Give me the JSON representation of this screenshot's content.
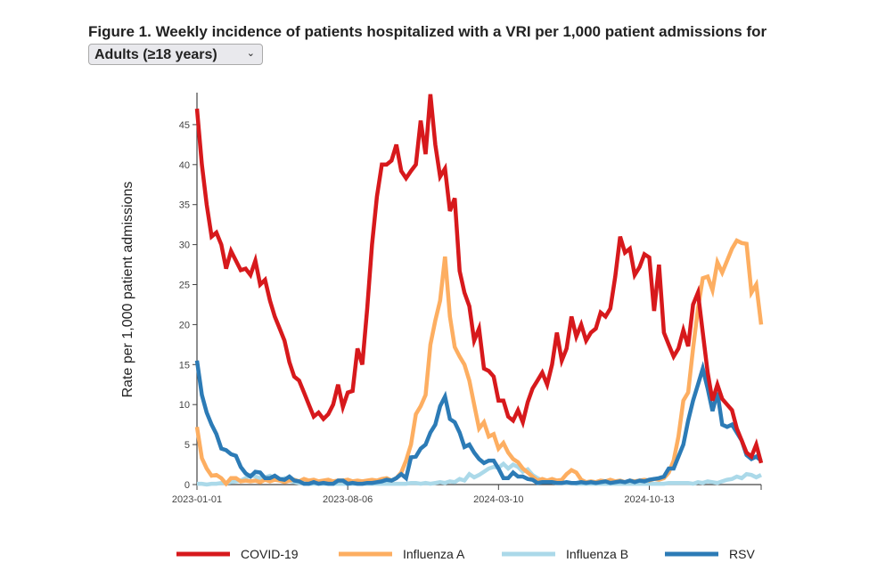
{
  "header": {
    "title": "Figure 1. Weekly incidence of patients hospitalized with a VRI per 1,000 patient admissions for",
    "population_select": "Adults (≥18 years)",
    "chevron": "⌄"
  },
  "chart_data": {
    "type": "line",
    "title": "Figure 1. Weekly incidence of patients hospitalized with a VRI per 1,000 patient admissions for Adults (≥18 years)",
    "xlabel": "",
    "ylabel": "Rate per 1,000 patient admissions",
    "x_start": "2023-01-01",
    "x_interval": "weekly",
    "x_ticks": [
      {
        "week": 0,
        "label": "2023-01-01"
      },
      {
        "week": 31,
        "label": "2023-08-06"
      },
      {
        "week": 62,
        "label": "2024-03-10"
      },
      {
        "week": 93,
        "label": "2024-10-13"
      }
    ],
    "y_ticks": [
      0,
      5,
      10,
      15,
      20,
      25,
      30,
      35,
      40,
      45
    ],
    "ylim": [
      0,
      49
    ],
    "grid": false,
    "legend": "bottom",
    "series": [
      {
        "name": "COVID-19",
        "color": "#d7191c",
        "values": [
          47,
          40,
          35,
          31,
          31.5,
          30,
          27,
          29.2,
          28,
          26.8,
          27,
          26.2,
          28,
          25,
          25.6,
          23,
          21,
          19.5,
          18,
          15.3,
          13.5,
          13,
          11.5,
          10,
          8.5,
          9,
          8.2,
          8.8,
          10,
          12.5,
          9.7,
          11.5,
          11.7,
          17,
          15,
          22,
          30,
          36,
          40,
          40,
          40.5,
          42.5,
          39.2,
          38.3,
          39.2,
          40,
          45.5,
          41.3,
          48.8,
          42.5,
          38.5,
          39.5,
          34.2,
          35.8,
          26.7,
          24,
          22.3,
          18,
          19.5,
          14.5,
          14.2,
          13.5,
          10.5,
          10.5,
          8.5,
          8,
          9.3,
          7.8,
          10.3,
          12,
          13,
          14,
          12.5,
          15,
          19,
          15.5,
          17,
          21,
          18.5,
          20,
          18,
          19,
          19.5,
          21.5,
          21,
          22,
          26,
          31,
          29,
          29.5,
          26.2,
          27.2,
          28.8,
          28.4,
          21.7,
          27.5,
          19,
          17.5,
          16,
          17,
          19.3,
          17.3,
          22.5,
          24,
          19,
          14,
          10.5,
          12.5,
          10.7,
          10,
          9.3,
          7,
          5.5,
          4,
          3.5,
          5,
          2.7
        ]
      },
      {
        "name": "Influenza A",
        "color": "#fdae61",
        "values": [
          7.2,
          3.3,
          2,
          1.1,
          1.2,
          0.8,
          0.1,
          0.8,
          0.8,
          0.4,
          0.5,
          0.4,
          0.5,
          0.3,
          0.6,
          0.4,
          0.6,
          0.5,
          0.3,
          0.5,
          0.6,
          0.4,
          0.7,
          0.5,
          0.6,
          0.4,
          0.5,
          0.6,
          0.4,
          0.5,
          0.5,
          0.6,
          0.4,
          0.5,
          0.4,
          0.5,
          0.6,
          0.5,
          0.7,
          0.8,
          0.5,
          0.8,
          1.5,
          3,
          5,
          8.8,
          9.8,
          11.2,
          17.5,
          20.5,
          23,
          28.5,
          21,
          17.2,
          16,
          15,
          13,
          10,
          7,
          7.8,
          6,
          6.3,
          4.5,
          5.2,
          4,
          3.2,
          2.8,
          2,
          1.5,
          1,
          0.5,
          0.7,
          0.5,
          0.7,
          0.5,
          0.6,
          1.3,
          1.8,
          1.5,
          0.6,
          0.3,
          0.4,
          0.3,
          0.5,
          0.4,
          0.6,
          0.4,
          0.5,
          0.3,
          0.5,
          0.4,
          0.5,
          0.6,
          0.5,
          0.7,
          0.6,
          0.8,
          1.5,
          3,
          6,
          10.5,
          11.5,
          17,
          22,
          25.8,
          26,
          24.3,
          27.8,
          26.5,
          28,
          29.5,
          30.5,
          30.2,
          30.1,
          24,
          25,
          20
        ]
      },
      {
        "name": "Influenza B",
        "color": "#abd9e9",
        "values": [
          0.1,
          0.1,
          0,
          0.1,
          0.1,
          0.2,
          0.2,
          0.3,
          0.4,
          0.5,
          0.8,
          1.2,
          1,
          0.8,
          0.9,
          1.1,
          0.7,
          0.6,
          0.8,
          0.5,
          0.3,
          0.2,
          0.2,
          0.1,
          0.1,
          0.1,
          0.1,
          0.1,
          0.1,
          0.1,
          0.1,
          0.1,
          0.1,
          0.1,
          0.1,
          0.1,
          0.1,
          0.1,
          0.1,
          0.1,
          0.1,
          0.1,
          0.1,
          0.1,
          0.2,
          0.2,
          0.1,
          0.2,
          0.1,
          0.2,
          0.3,
          0.2,
          0.4,
          0.3,
          0.7,
          0.5,
          1.3,
          0.9,
          1.2,
          1.6,
          2,
          2.2,
          2.1,
          2.6,
          2.0,
          2.5,
          2.2,
          1.6,
          1.9,
          1.2,
          0.8,
          0.5,
          0.3,
          0.3,
          0.2,
          0.2,
          0.2,
          0.2,
          0.1,
          0.1,
          0.1,
          0.1,
          0.1,
          0.1,
          0.1,
          0.1,
          0.1,
          0.1,
          0.1,
          0.1,
          0.1,
          0.1,
          0.1,
          0.1,
          0.1,
          0.1,
          0.1,
          0.2,
          0.2,
          0.2,
          0.2,
          0.2,
          0.1,
          0.3,
          0.2,
          0.4,
          0.3,
          0.2,
          0.4,
          0.6,
          0.7,
          1.0,
          0.8,
          1.3,
          1.2,
          0.9,
          1.2
        ]
      },
      {
        "name": "RSV",
        "color": "#2c7bb6",
        "values": [
          15.5,
          11.2,
          9,
          7.5,
          6.3,
          4.5,
          4.3,
          3.8,
          3.6,
          2.2,
          1.4,
          1,
          1.6,
          1.5,
          0.8,
          0.8,
          1.1,
          0.7,
          0.6,
          1,
          0.5,
          0.4,
          0.1,
          0.1,
          0.3,
          0.1,
          0.2,
          0.1,
          0.1,
          0.5,
          0.5,
          0.1,
          0.2,
          0.1,
          0.1,
          0.2,
          0.2,
          0.3,
          0.4,
          0.6,
          0.5,
          0.8,
          1.3,
          0.8,
          3.4,
          3.5,
          4.5,
          5,
          6.5,
          7.5,
          9.8,
          11,
          8.2,
          7.8,
          6.5,
          4.7,
          5,
          4,
          3.2,
          2.7,
          3,
          3,
          2,
          0.8,
          0.8,
          1.5,
          1,
          1,
          0.7,
          0.6,
          0.2,
          0.3,
          0.3,
          0.3,
          0.2,
          0.2,
          0.3,
          0.2,
          0.2,
          0.3,
          0.2,
          0.3,
          0.2,
          0.3,
          0.4,
          0.2,
          0.3,
          0.4,
          0.3,
          0.5,
          0.3,
          0.5,
          0.4,
          0.6,
          0.7,
          0.8,
          1,
          2,
          2,
          3.5,
          5,
          8,
          10.5,
          12.5,
          14.5,
          12,
          9.2,
          11.5,
          7.5,
          7.2,
          7.5,
          6.5,
          5.5,
          3.7,
          3.2,
          3.5,
          3
        ]
      }
    ]
  }
}
